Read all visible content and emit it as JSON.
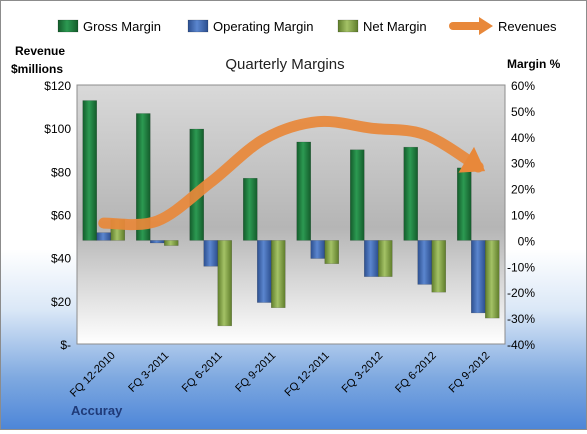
{
  "chart_data": {
    "type": "bar",
    "title": "Quarterly Margins",
    "categories": [
      "FQ 12-2010",
      "FQ 3-2011",
      "FQ 6-2011",
      "FQ 9-2011",
      "FQ 12-2011",
      "FQ 3-2012",
      "FQ 6-2012",
      "FQ 9-2012"
    ],
    "series": [
      {
        "name": "Gross Margin",
        "axis": "right",
        "color": "#1f7a3c",
        "values": [
          54,
          49,
          43,
          24,
          38,
          35,
          36,
          28
        ]
      },
      {
        "name": "Operating Margin",
        "axis": "right",
        "color": "#3f66ad",
        "values": [
          3,
          -1,
          -10,
          -24,
          -7,
          -14,
          -17,
          -28
        ]
      },
      {
        "name": "Net Margin",
        "axis": "right",
        "color": "#86a84a",
        "values": [
          8,
          -2,
          -33,
          -26,
          -9,
          -14,
          -20,
          -30
        ]
      },
      {
        "name": "Revenues",
        "type": "line",
        "axis": "left",
        "color": "#e8883a",
        "values": [
          56,
          57,
          75,
          95,
          103,
          100,
          97,
          82
        ]
      }
    ],
    "left_axis": {
      "label_line1": "Revenue",
      "label_line2": "$millions",
      "ylim": [
        0,
        120
      ],
      "ticks": [
        "$120",
        "$100",
        "$80",
        "$60",
        "$40",
        "$20",
        "$-"
      ]
    },
    "right_axis": {
      "label": "Margin %",
      "ylim": [
        -40,
        60
      ],
      "ticks": [
        "60%",
        "50%",
        "40%",
        "30%",
        "20%",
        "10%",
        "0%",
        "-10%",
        "-20%",
        "-30%",
        "-40%"
      ]
    },
    "legend_position": "top",
    "company": "Accuray",
    "grid": false
  }
}
